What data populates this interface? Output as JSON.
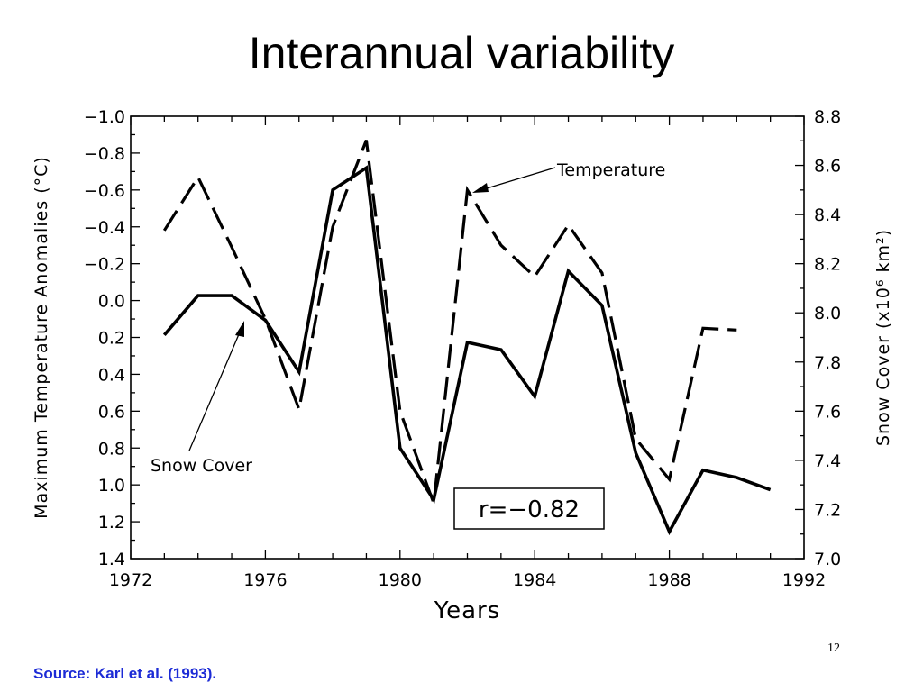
{
  "slide": {
    "title": "Interannual variability",
    "number": "12",
    "source": "Source: Karl et al. (1993).",
    "colors": {
      "source_text": "#1c2bd6",
      "ink": "#000000",
      "background": "#ffffff"
    }
  },
  "chart_data": {
    "type": "line",
    "xlabel": "Years",
    "ylabel_left": "Maximum Temperature Anomalies (°C)",
    "ylabel_right": "Snow Cover (x10⁶ km²)",
    "xlim": [
      1972,
      1992
    ],
    "x_ticks": [
      "1972",
      "1976",
      "1980",
      "1984",
      "1988",
      "1992"
    ],
    "x_minor_step": 1,
    "ylim_left": [
      -1.0,
      1.4
    ],
    "left_axis_inverted": true,
    "y_ticks_left": [
      "−1.0",
      "−0.8",
      "−0.6",
      "−0.4",
      "−0.2",
      "0.0",
      "0.2",
      "0.4",
      "0.6",
      "0.8",
      "1.0",
      "1.2",
      "1.4"
    ],
    "ylim_right": [
      7.0,
      8.8
    ],
    "y_ticks_right": [
      "8.8",
      "8.6",
      "8.4",
      "8.2",
      "8.0",
      "7.8",
      "7.6",
      "7.4",
      "7.2",
      "7.0"
    ],
    "grid": false,
    "series": [
      {
        "name": "Temperature",
        "axis": "left",
        "style": "dashed",
        "x": [
          1973,
          1974,
          1975,
          1976,
          1977,
          1978,
          1979,
          1980,
          1981,
          1982,
          1983,
          1984,
          1985,
          1986,
          1987,
          1988,
          1989,
          1990
        ],
        "y": [
          -0.38,
          -0.67,
          -0.29,
          0.1,
          0.59,
          -0.4,
          -0.87,
          0.6,
          1.1,
          -0.6,
          -0.3,
          -0.13,
          -0.41,
          -0.15,
          0.75,
          0.97,
          0.15,
          0.16
        ]
      },
      {
        "name": "Snow Cover",
        "axis": "right",
        "style": "solid",
        "x": [
          1973,
          1974,
          1975,
          1976,
          1977,
          1978,
          1979,
          1980,
          1981,
          1982,
          1983,
          1984,
          1985,
          1986,
          1987,
          1988,
          1989,
          1990,
          1991
        ],
        "y": [
          7.91,
          8.07,
          8.07,
          7.97,
          7.76,
          8.5,
          8.59,
          7.45,
          7.24,
          7.88,
          7.85,
          7.66,
          8.17,
          8.03,
          7.43,
          7.11,
          7.36,
          7.33,
          7.28
        ]
      }
    ],
    "annotations": [
      {
        "text": "Temperature",
        "points_to": "Temperature"
      },
      {
        "text": "Snow Cover",
        "points_to": "Snow Cover"
      }
    ],
    "stat_box": "r=−0.82"
  }
}
